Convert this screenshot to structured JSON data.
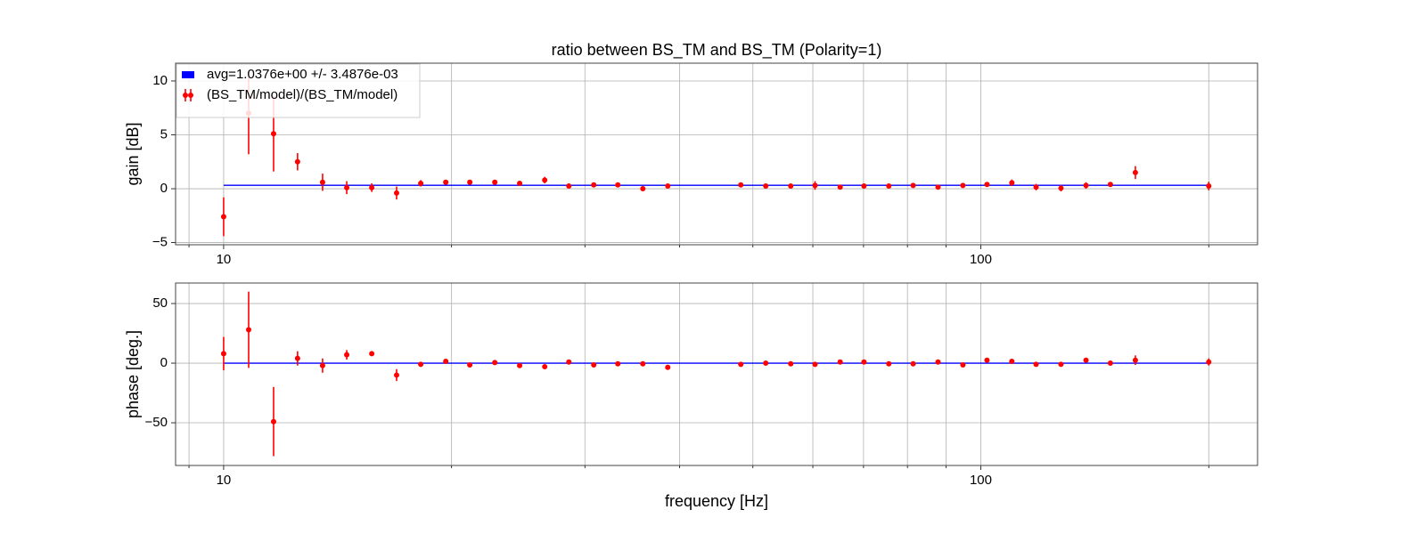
{
  "chart_data": [
    {
      "type": "errorbar",
      "title": "ratio between BS_TM and BS_TM (Polarity=1)",
      "ylabel": "gain [dB]",
      "xscale": "log",
      "xlim": [
        8.64,
        232
      ],
      "xticks": [
        10,
        100
      ],
      "xminorticks": [
        9,
        20,
        30,
        40,
        50,
        60,
        70,
        80,
        90,
        200
      ],
      "ylim": [
        -5.2,
        11.65
      ],
      "yticks": [
        {
          "value": -5,
          "label": "−5"
        },
        0,
        5,
        10
      ],
      "grid": true,
      "legend": "upper left",
      "series": [
        {
          "name": "avg=1.0376e+00 +/- 3.4876e-03",
          "color": "#0000ff",
          "x": [
            10,
            200
          ],
          "values": [
            0.32,
            0.32
          ]
        },
        {
          "name": "(BS_TM/model)/(BS_TM/model)",
          "color": "#ff0000",
          "x": [
            10,
            10.79,
            11.64,
            12.52,
            13.51,
            14.54,
            15.69,
            16.92,
            18.21,
            19.65,
            21.14,
            22.81,
            24.6,
            26.55,
            28.57,
            30.82,
            33.16,
            35.78,
            38.6,
            48.2,
            52.0,
            56.1,
            60.4,
            65.2,
            70.1,
            75.6,
            81.4,
            87.8,
            94.7,
            101.9,
            109.9,
            118.3,
            127.6,
            137.7,
            148.3,
            160.0,
            200
          ],
          "values": [
            -2.6,
            7.0,
            5.1,
            2.5,
            0.6,
            0.1,
            0.1,
            -0.4,
            0.5,
            0.6,
            0.6,
            0.6,
            0.5,
            0.8,
            0.25,
            0.35,
            0.35,
            0,
            0.25,
            0.35,
            0.25,
            0.25,
            0.3,
            0.15,
            0.25,
            0.25,
            0.3,
            0.15,
            0.3,
            0.4,
            0.55,
            0.15,
            0.05,
            0.3,
            0.4,
            1.5,
            0.25
          ],
          "errors": [
            1.8,
            3.8,
            3.5,
            0.8,
            0.8,
            0.6,
            0.4,
            0.6,
            0.3,
            0.2,
            0.2,
            0.2,
            0.1,
            0.3,
            0.1,
            0.1,
            0.1,
            0.1,
            0.1,
            0.1,
            0.1,
            0.1,
            0.4,
            0.1,
            0.1,
            0.1,
            0.1,
            0.1,
            0.1,
            0.1,
            0.3,
            0.3,
            0.3,
            0.3,
            0.2,
            0.6,
            0.4
          ]
        }
      ]
    },
    {
      "type": "errorbar",
      "ylabel": "phase [deg.]",
      "xlabel": "frequency [Hz]",
      "xscale": "log",
      "xlim": [
        8.64,
        232
      ],
      "xticks": [
        10,
        100
      ],
      "xminorticks": [
        9,
        20,
        30,
        40,
        50,
        60,
        70,
        80,
        90,
        200
      ],
      "ylim": [
        -85.8,
        67.2
      ],
      "yticks": [
        {
          "value": -50,
          "label": "−50"
        },
        0,
        50
      ],
      "grid": true,
      "series": [
        {
          "color": "#0000ff",
          "x": [
            10,
            200
          ],
          "values": [
            0,
            0
          ]
        },
        {
          "color": "#ff0000",
          "x": [
            10,
            10.79,
            11.64,
            12.52,
            13.51,
            14.54,
            15.69,
            16.92,
            18.21,
            19.65,
            21.14,
            22.81,
            24.6,
            26.55,
            28.57,
            30.82,
            33.16,
            35.78,
            38.6,
            48.2,
            52.0,
            56.1,
            60.4,
            65.2,
            70.1,
            75.6,
            81.4,
            87.8,
            94.7,
            101.9,
            109.9,
            118.3,
            127.6,
            137.7,
            148.3,
            160.0,
            200
          ],
          "values": [
            8,
            28,
            -49,
            4,
            -2,
            7,
            8,
            -10,
            -1,
            1.5,
            -1.5,
            0.5,
            -2,
            -3,
            1,
            -1.5,
            -0.5,
            -0.5,
            -3.5,
            -1,
            0,
            -0.5,
            -1,
            1,
            1,
            -0.5,
            -0.5,
            1,
            -1.5,
            2.5,
            1.5,
            -1,
            -1,
            2.5,
            0,
            2.5,
            1
          ],
          "errors": [
            14,
            32,
            29,
            6,
            6,
            4,
            2,
            5,
            2,
            1,
            1,
            1,
            1,
            1,
            1,
            1,
            1,
            1,
            1,
            1,
            1,
            1,
            2,
            1,
            1,
            1,
            1,
            1,
            1,
            1,
            1,
            1,
            1,
            2,
            1,
            4,
            3
          ]
        }
      ]
    }
  ]
}
